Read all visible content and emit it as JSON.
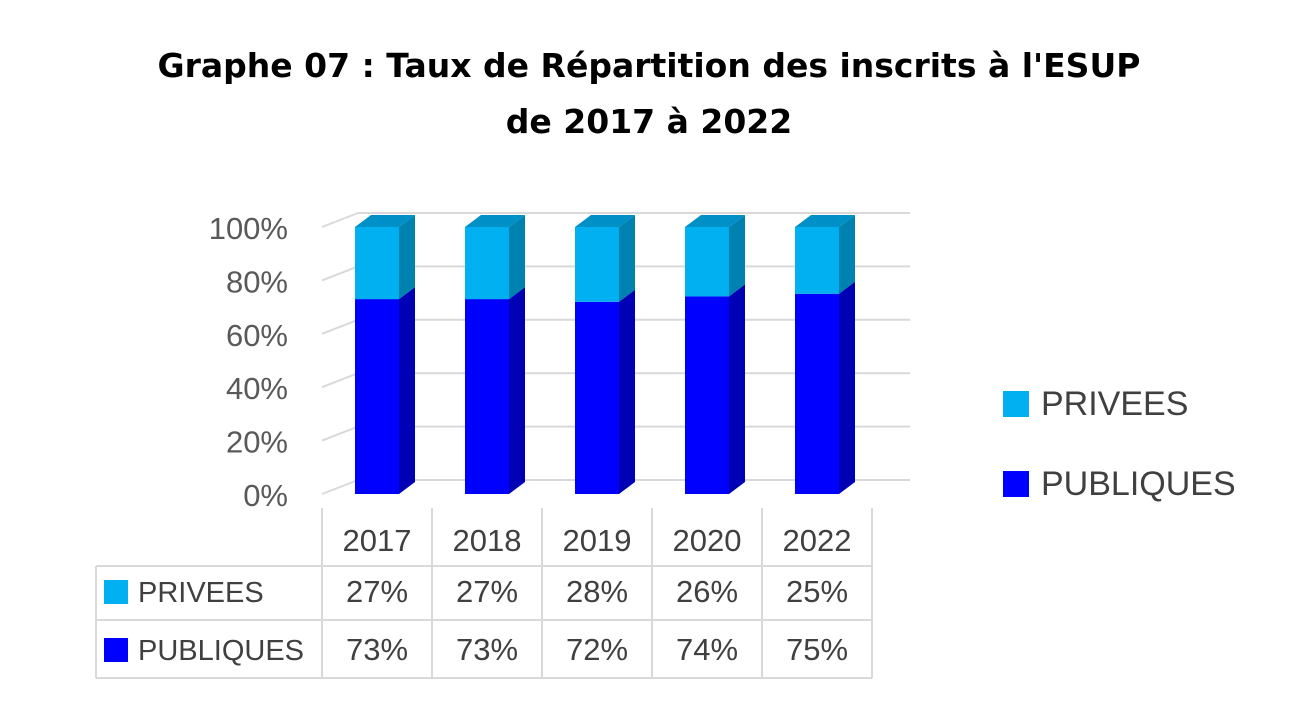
{
  "chart_data": {
    "type": "bar",
    "stacked": true,
    "percent_stacked": true,
    "three_d": true,
    "title": "Graphe 07 : Taux de Répartition des inscrits à l'ESUP de 2017 à 2022",
    "title_lines": [
      "Graphe 07 : Taux de Répartition des inscrits à l'ESUP",
      "de 2017 à 2022"
    ],
    "categories": [
      "2017",
      "2018",
      "2019",
      "2020",
      "2022"
    ],
    "series": [
      {
        "name": "PUBLIQUES",
        "values": [
          73,
          73,
          72,
          74,
          75
        ],
        "labels": [
          "73%",
          "73%",
          "72%",
          "74%",
          "75%"
        ],
        "color": "#0000ff"
      },
      {
        "name": "PRIVEES",
        "values": [
          27,
          27,
          28,
          26,
          25
        ],
        "labels": [
          "27%",
          "27%",
          "28%",
          "26%",
          "25%"
        ],
        "color": "#00b0f0"
      }
    ],
    "yticks": [
      "0%",
      "20%",
      "40%",
      "60%",
      "80%",
      "100%"
    ],
    "ylim": [
      0,
      100
    ],
    "grid": true,
    "legend": "right",
    "data_table": true
  }
}
